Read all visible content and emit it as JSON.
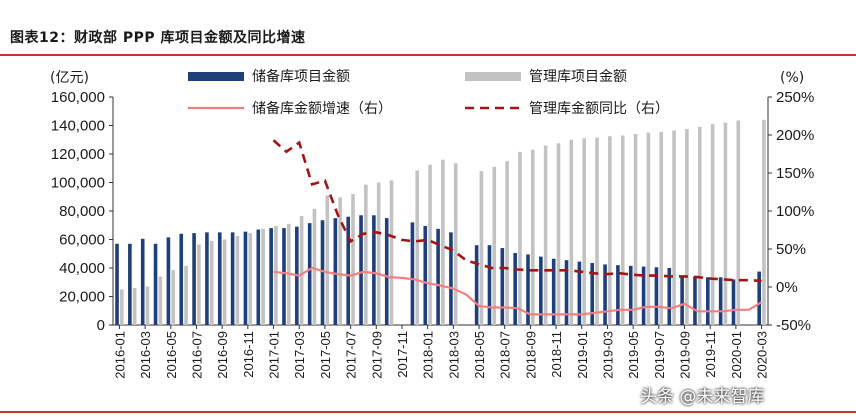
{
  "figure_title": "图表12：财政部 PPP 库项目金额及同比增速",
  "watermark": "头条 @未来智库",
  "colors": {
    "reserve_bar": "#1f3f7a",
    "managed_bar": "#c2c2c2",
    "reserve_growth_line": "#f08080",
    "managed_growth_line": "#a31515",
    "rule": "#c0392b"
  },
  "chart_data": {
    "type": "bar",
    "left_unit": "(亿元)",
    "right_unit": "(%)",
    "ylim_left": [
      0,
      160000
    ],
    "ylim_right": [
      -50,
      250
    ],
    "left_ticks": [
      "0",
      "20,000",
      "40,000",
      "60,000",
      "80,000",
      "100,000",
      "120,000",
      "140,000",
      "160,000"
    ],
    "right_ticks": [
      "-50%",
      "0%",
      "50%",
      "100%",
      "150%",
      "200%",
      "250%"
    ],
    "grid": false,
    "legend_position": "top",
    "categories": [
      "2016-01",
      "2016-02",
      "2016-03",
      "2016-04",
      "2016-05",
      "2016-06",
      "2016-07",
      "2016-08",
      "2016-09",
      "2016-10",
      "2016-11",
      "2016-12",
      "2017-01",
      "2017-02",
      "2017-03",
      "2017-04",
      "2017-05",
      "2017-06",
      "2017-07",
      "2017-08",
      "2017-09",
      "2017-10",
      "2017-11",
      "2017-12",
      "2018-01",
      "2018-02",
      "2018-03",
      "2018-04",
      "2018-05",
      "2018-06",
      "2018-07",
      "2018-08",
      "2018-09",
      "2018-10",
      "2018-11",
      "2018-12",
      "2019-01",
      "2019-02",
      "2019-03",
      "2019-04",
      "2019-05",
      "2019-06",
      "2019-07",
      "2019-08",
      "2019-09",
      "2019-10",
      "2019-11",
      "2019-12",
      "2020-01",
      "2020-02",
      "2020-03"
    ],
    "x_tick_labels": [
      "2016-01",
      "2016-03",
      "2016-05",
      "2016-07",
      "2016-09",
      "2016-11",
      "2017-01",
      "2017-03",
      "2017-05",
      "2017-07",
      "2017-09",
      "2017-11",
      "2018-01",
      "2018-03",
      "2018-05",
      "2018-07",
      "2018-09",
      "2018-11",
      "2019-01",
      "2019-03",
      "2019-05",
      "2019-07",
      "2019-09",
      "2019-11",
      "2020-01",
      "2020-03"
    ],
    "series": [
      {
        "name": "储备库项目金额",
        "axis": "left",
        "type": "bar",
        "values": [
          57000,
          57000,
          60500,
          57000,
          61500,
          64000,
          64500,
          65000,
          65000,
          65000,
          65500,
          67000,
          68000,
          68000,
          69000,
          71500,
          73500,
          75000,
          76000,
          77000,
          77000,
          75000,
          null,
          72000,
          69500,
          67500,
          65000,
          null,
          56000,
          56000,
          54000,
          50500,
          49500,
          48000,
          46500,
          45500,
          44500,
          43500,
          42500,
          42000,
          41500,
          41000,
          40500,
          40000,
          34500,
          34000,
          33500,
          33500,
          32000,
          null,
          37500
        ]
      },
      {
        "name": "管理库项目金额",
        "axis": "left",
        "type": "bar",
        "values": [
          25000,
          26000,
          27000,
          34000,
          38500,
          41500,
          56500,
          59000,
          60000,
          62500,
          64500,
          67500,
          69500,
          71000,
          76500,
          81500,
          91000,
          89500,
          92000,
          98500,
          100000,
          101500,
          null,
          108500,
          112500,
          116000,
          113500,
          null,
          108000,
          111000,
          115000,
          121500,
          123000,
          126000,
          127500,
          130000,
          131000,
          131500,
          132500,
          133000,
          134000,
          135000,
          135500,
          136500,
          137500,
          139000,
          141000,
          142000,
          143500,
          null,
          144000
        ]
      },
      {
        "name": "储备库金额增速（右）",
        "axis": "right",
        "type": "line",
        "values": [
          null,
          null,
          null,
          null,
          null,
          null,
          null,
          null,
          null,
          null,
          null,
          null,
          20,
          18,
          15,
          25,
          20,
          17,
          15,
          20,
          18,
          13,
          12,
          10,
          5,
          2,
          -2,
          -10,
          -25,
          -27,
          -27,
          -28,
          -36,
          -36,
          -36,
          -36,
          -36,
          -34,
          -32,
          -30,
          -30,
          -26,
          -26,
          -28,
          -22,
          -32,
          -32,
          -32,
          -30,
          -30,
          -20
        ]
      },
      {
        "name": "管理库金额同比（右）",
        "axis": "right",
        "type": "line",
        "values": [
          null,
          null,
          null,
          null,
          null,
          null,
          null,
          null,
          null,
          null,
          null,
          null,
          193,
          178,
          190,
          135,
          140,
          95,
          60,
          70,
          72,
          68,
          62,
          60,
          62,
          55,
          48,
          35,
          30,
          25,
          25,
          23,
          22,
          22,
          22,
          22,
          20,
          18,
          17,
          18,
          16,
          15,
          15,
          14,
          14,
          13,
          11,
          10,
          9,
          9,
          8
        ]
      }
    ]
  }
}
